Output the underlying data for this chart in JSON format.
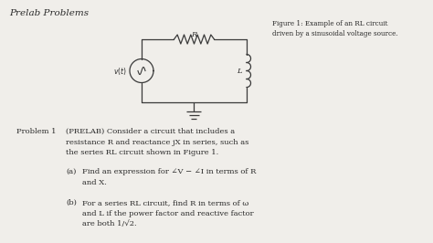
{
  "title": "Prelab Problems",
  "figure_caption": "Figure 1: Example of an RL circuit\ndriven by a sinusoidal voltage source.",
  "problem_label": "Problem 1",
  "problem_text": "(PRELAB) Consider a circuit that includes a\nresistance R and reactance jX in series, such as\nthe series RL circuit shown in Figure 1.",
  "part_a_label": "(a)",
  "part_a_text": "Find an expression for ∠V − ∠I in terms of R\nand X.",
  "part_b_label": "(b)",
  "part_b_text": "For a series RL circuit, find R in terms of ω\nand L if the power factor and reactive factor\nare both 1/√2.",
  "bg_color": "#f0eeea",
  "text_color": "#2a2a2a",
  "circuit_color": "#3a3a3a"
}
